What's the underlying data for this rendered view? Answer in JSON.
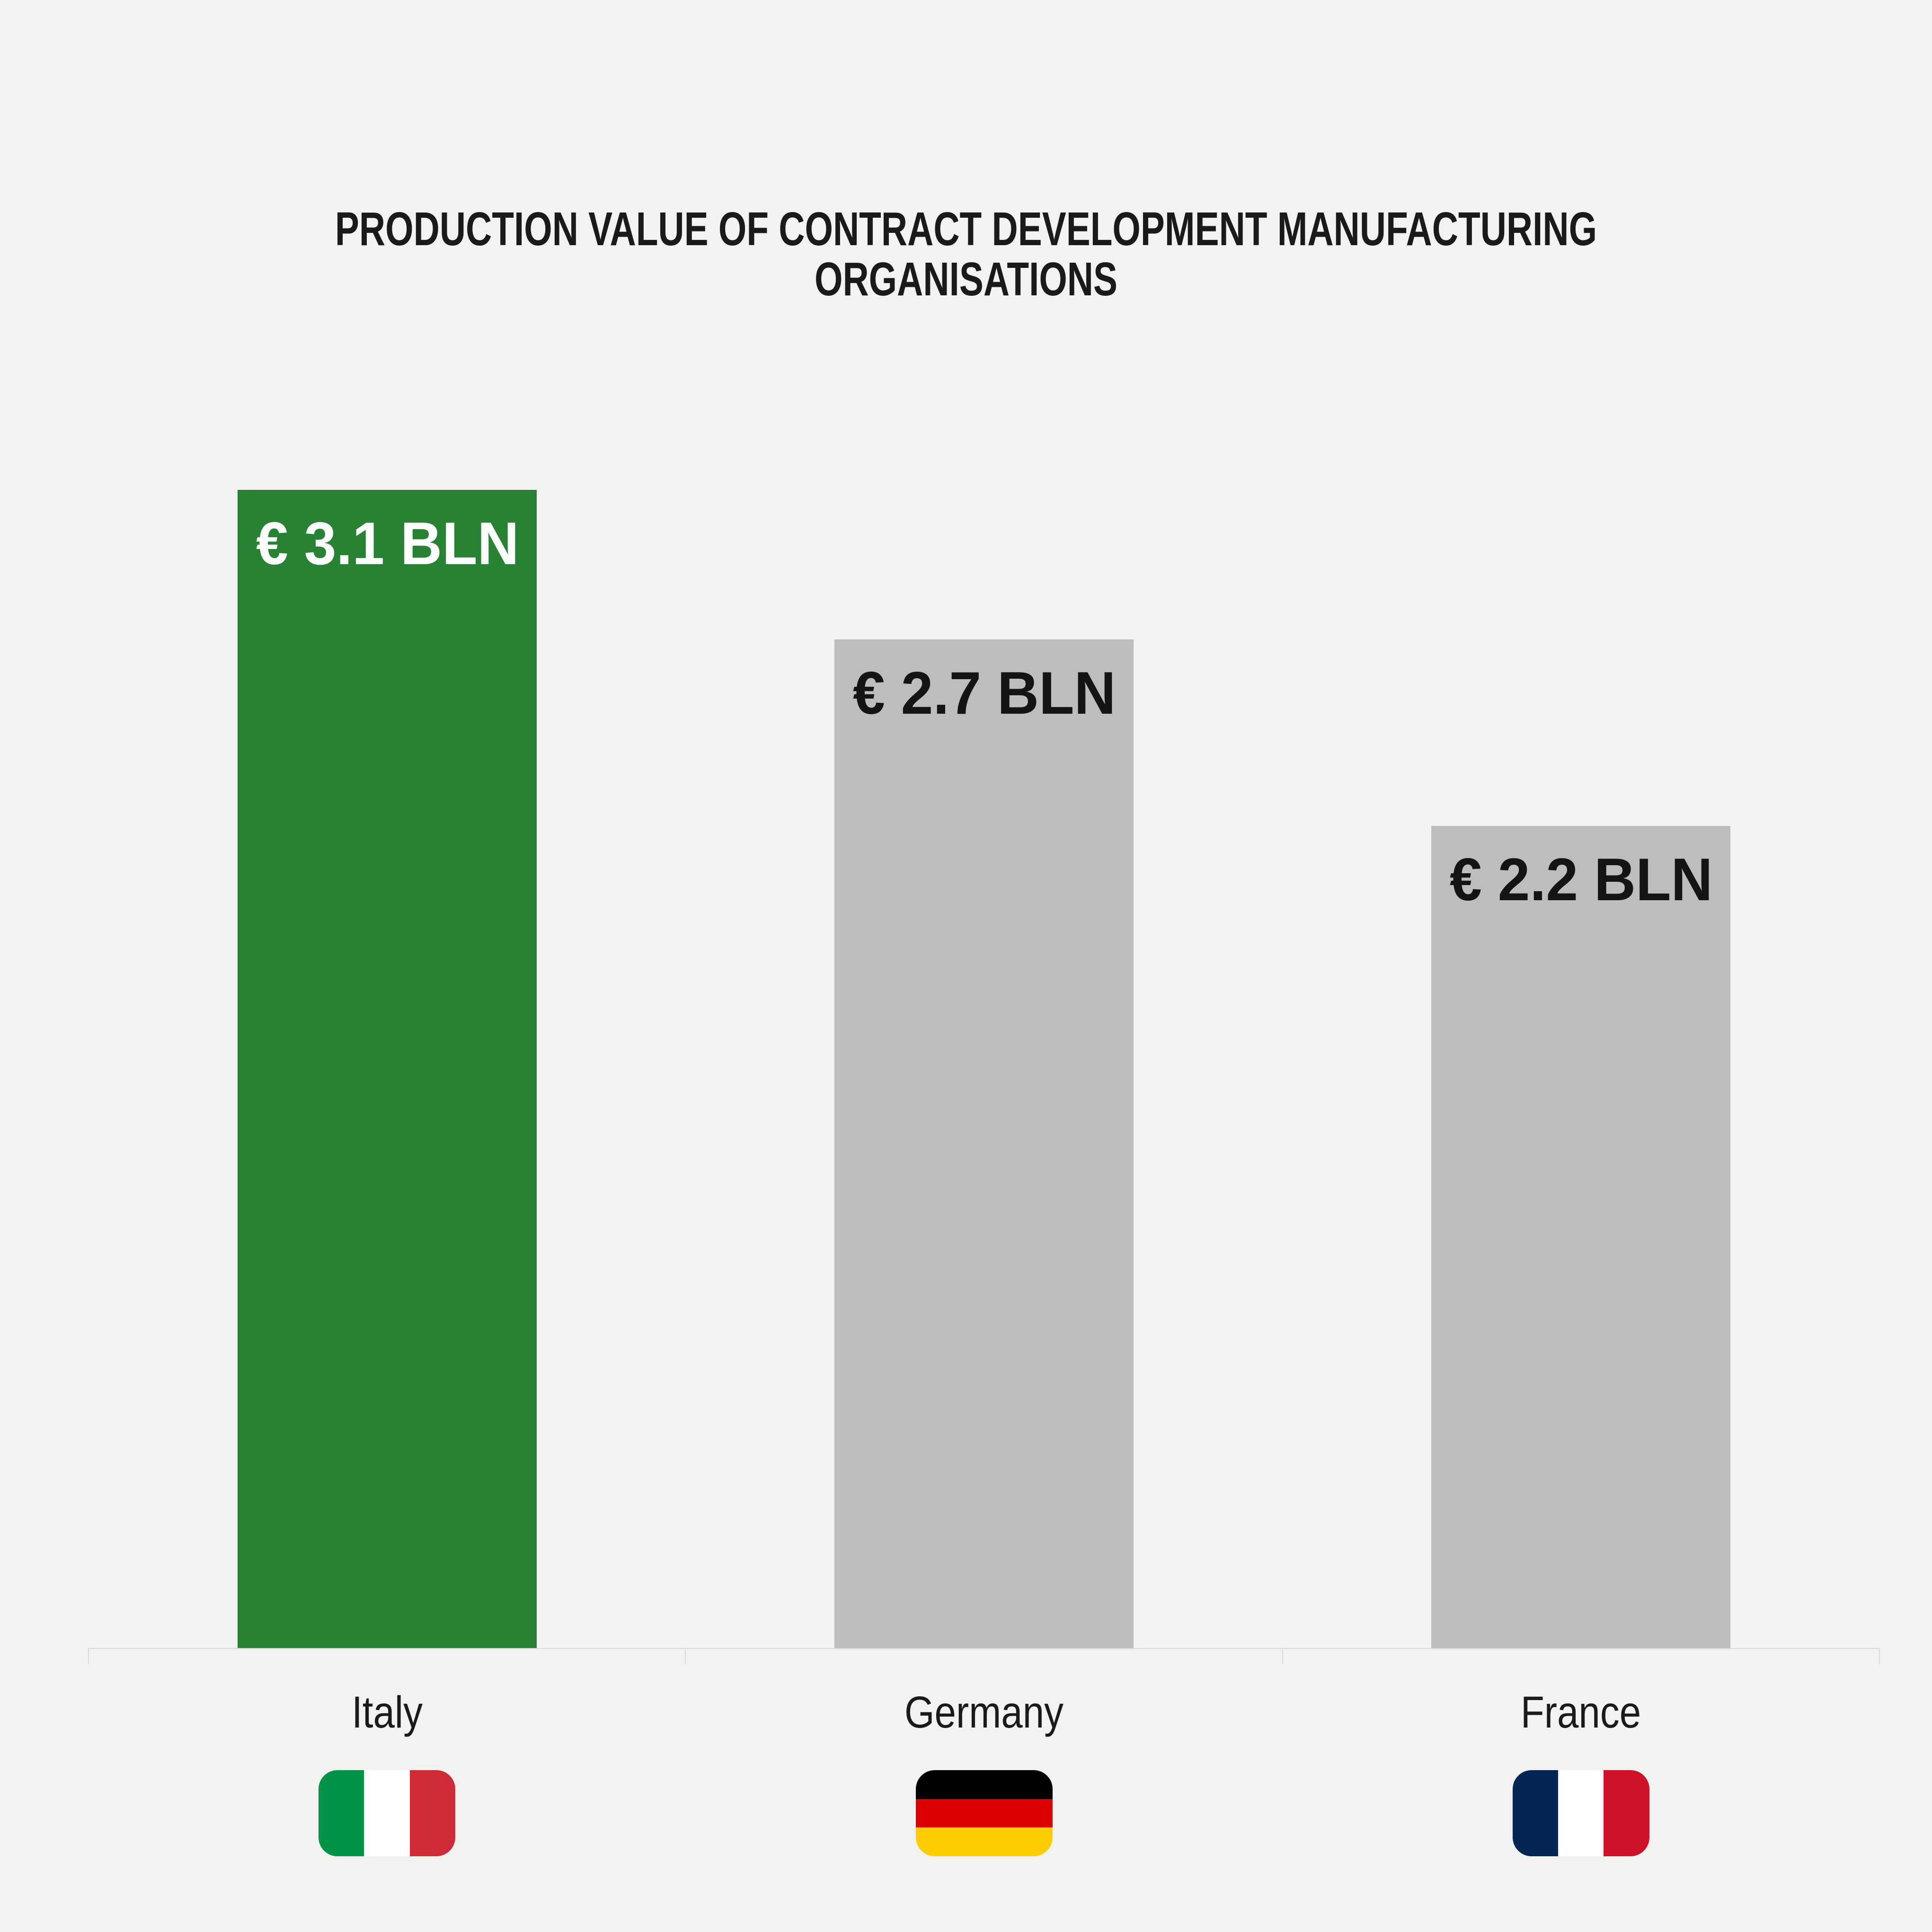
{
  "chart_data": {
    "type": "bar",
    "title": "PRODUCTION VALUE OF CONTRACT DEVELOPMENT MANUFACTURING ORGANISATIONS",
    "categories": [
      "Italy",
      "Germany",
      "France"
    ],
    "values": [
      3.1,
      2.7,
      2.2
    ],
    "value_labels": [
      "€ 3.1 BLN",
      "€ 2.7 BLN",
      "€ 2.2 BLN"
    ],
    "xlabel": "",
    "ylabel": "",
    "ylim": [
      0,
      3.1
    ],
    "grid": false,
    "legend": false,
    "series": [
      {
        "name": "Italy",
        "value": 3.1,
        "value_label": "€ 3.1 BLN",
        "bar_color": "#288234",
        "value_label_color": "#ffffff",
        "flag_orientation": "vertical",
        "flag_colors": [
          "#009246",
          "#ffffff",
          "#ce2b37"
        ]
      },
      {
        "name": "Germany",
        "value": 2.7,
        "value_label": "€ 2.7 BLN",
        "bar_color": "#bdbdbd",
        "value_label_color": "#141414",
        "flag_orientation": "horizontal",
        "flag_colors": [
          "#000000",
          "#dd0000",
          "#ffce00"
        ]
      },
      {
        "name": "France",
        "value": 2.2,
        "value_label": "€ 2.2 BLN",
        "bar_color": "#bdbdbd",
        "value_label_color": "#141414",
        "flag_orientation": "vertical",
        "flag_colors": [
          "#032654",
          "#ffffff",
          "#ce1126"
        ]
      }
    ],
    "colors": {
      "background": "#f2f2f1",
      "axis": "#d9d9d9",
      "title_text": "#1a1a1a",
      "category_label_text": "#1a1a1a"
    }
  }
}
